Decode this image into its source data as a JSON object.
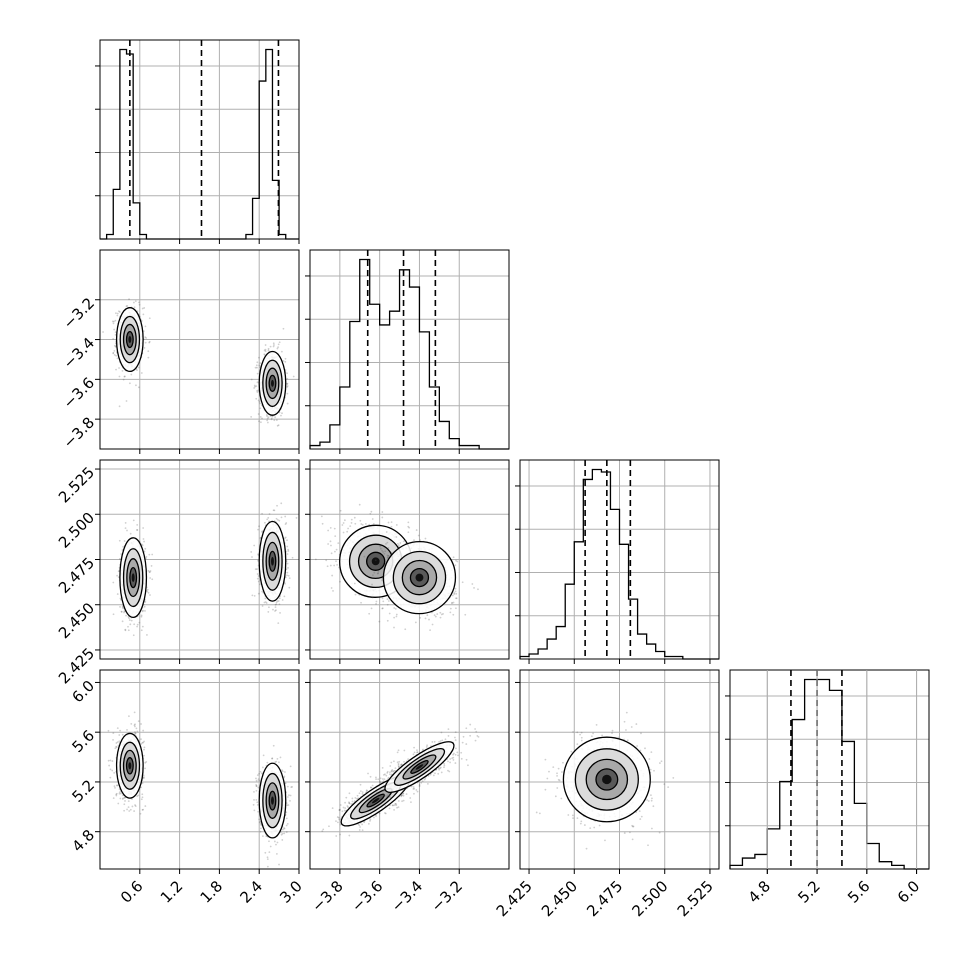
{
  "figure": {
    "type": "corner_plot",
    "n_params": 4,
    "grid": true,
    "colors": {
      "line": "#000000",
      "grid": "#b0b0b0",
      "points": "#555555"
    }
  },
  "chart_data": [
    {
      "type": "bar",
      "panel": "diag-0",
      "x_range": [
        0,
        3.0
      ],
      "x_ticks": [
        0.6,
        1.2,
        1.8,
        2.4,
        3.0
      ],
      "x_tick_labels": [
        "0.6",
        "1.2",
        "1.8",
        "2.4",
        "3.0"
      ],
      "bin_edges": [
        0.0,
        0.1,
        0.2,
        0.3,
        0.4,
        0.5,
        0.6,
        0.7,
        0.8,
        0.9,
        1.0,
        1.1,
        1.2,
        1.3,
        1.4,
        1.5,
        1.6,
        1.7,
        1.8,
        1.9,
        2.0,
        2.1,
        2.2,
        2.3,
        2.4,
        2.5,
        2.6,
        2.7,
        2.8,
        2.9,
        3.0
      ],
      "values": [
        0,
        1,
        11,
        42,
        41,
        8,
        1,
        0,
        0,
        0,
        0,
        0,
        0,
        0,
        0,
        0,
        0,
        0,
        0,
        0,
        0,
        0,
        1,
        9,
        35,
        42,
        13,
        1,
        0,
        0
      ],
      "quantile_lines": [
        0.45,
        1.53,
        2.69
      ]
    },
    {
      "type": "bar",
      "panel": "diag-1",
      "x_range": [
        -3.95,
        -2.95
      ],
      "x_ticks": [
        -3.8,
        -3.6,
        -3.4,
        -3.2
      ],
      "x_tick_labels": [
        "−3.8",
        "−3.6",
        "−3.4",
        "−3.2"
      ],
      "bin_edges": [
        -3.95,
        -3.9,
        -3.85,
        -3.8,
        -3.75,
        -3.7,
        -3.65,
        -3.6,
        -3.55,
        -3.5,
        -3.45,
        -3.4,
        -3.35,
        -3.3,
        -3.25,
        -3.2,
        -3.15,
        -3.1,
        -3.05,
        -3.0,
        -2.95
      ],
      "values": [
        1,
        2,
        7,
        18,
        37,
        55,
        42,
        36,
        40,
        52,
        47,
        34,
        18,
        8,
        3,
        1,
        1,
        0,
        0,
        0
      ],
      "quantile_lines": [
        -3.66,
        -3.48,
        -3.32
      ]
    },
    {
      "type": "bar",
      "panel": "diag-2",
      "x_range": [
        2.42,
        2.53
      ],
      "x_ticks": [
        2.425,
        2.45,
        2.475,
        2.5,
        2.525
      ],
      "x_tick_labels": [
        "2.425",
        "2.450",
        "2.475",
        "2.500",
        "2.525"
      ],
      "bin_edges": [
        2.42,
        2.425,
        2.43,
        2.435,
        2.44,
        2.445,
        2.45,
        2.455,
        2.46,
        2.465,
        2.47,
        2.475,
        2.48,
        2.485,
        2.49,
        2.495,
        2.5,
        2.505,
        2.51,
        2.515,
        2.52,
        2.525,
        2.53
      ],
      "values": [
        1,
        2,
        4,
        8,
        13,
        30,
        47,
        72,
        76,
        75,
        60,
        46,
        24,
        10,
        6,
        3,
        1,
        1,
        0,
        0,
        0,
        0
      ],
      "quantile_lines": [
        2.456,
        2.468,
        2.481
      ]
    },
    {
      "type": "bar",
      "panel": "diag-3",
      "x_range": [
        4.5,
        6.1
      ],
      "x_ticks": [
        4.8,
        5.2,
        5.6,
        6.0
      ],
      "x_tick_labels": [
        "4.8",
        "5.2",
        "5.6",
        "6.0"
      ],
      "bin_edges": [
        4.5,
        4.6,
        4.7,
        4.8,
        4.9,
        5.0,
        5.1,
        5.2,
        5.3,
        5.4,
        5.5,
        5.6,
        5.7,
        5.8,
        5.9,
        6.0,
        6.1
      ],
      "values": [
        1,
        3,
        4,
        11,
        24,
        41,
        52,
        52,
        49,
        35,
        18,
        7,
        2,
        1,
        0,
        0
      ],
      "quantile_lines": [
        4.99,
        5.2,
        5.4
      ]
    },
    {
      "type": "scatter",
      "panel": "row1-col0",
      "x_range": [
        0,
        3.0
      ],
      "y_range": [
        -3.95,
        -2.95
      ],
      "y_ticks": [
        -3.8,
        -3.6,
        -3.4,
        -3.2
      ],
      "y_tick_labels": [
        "−3.8",
        "−3.6",
        "−3.4",
        "−3.2"
      ],
      "clusters": [
        {
          "center": [
            0.45,
            -3.4
          ],
          "spread": [
            0.1,
            0.08
          ],
          "rho": 0
        },
        {
          "center": [
            2.6,
            -3.62
          ],
          "spread": [
            0.1,
            0.08
          ],
          "rho": 0
        }
      ]
    },
    {
      "type": "scatter",
      "panel": "row2-col0",
      "x_range": [
        0,
        3.0
      ],
      "y_range": [
        2.42,
        2.53
      ],
      "y_ticks": [
        2.425,
        2.45,
        2.475,
        2.5,
        2.525
      ],
      "y_tick_labels": [
        "2.425",
        "2.450",
        "2.475",
        "2.500",
        "2.525"
      ],
      "clusters": [
        {
          "center": [
            0.5,
            2.465
          ],
          "spread": [
            0.1,
            0.011
          ],
          "rho": 0
        },
        {
          "center": [
            2.6,
            2.474
          ],
          "spread": [
            0.1,
            0.011
          ],
          "rho": 0
        }
      ]
    },
    {
      "type": "scatter",
      "panel": "row2-col1",
      "x_range": [
        -3.95,
        -2.95
      ],
      "y_range": [
        2.42,
        2.53
      ],
      "clusters": [
        {
          "center": [
            -3.62,
            2.474
          ],
          "spread": [
            0.09,
            0.01
          ],
          "rho": -0.3
        },
        {
          "center": [
            -3.4,
            2.465
          ],
          "spread": [
            0.09,
            0.01
          ],
          "rho": -0.3
        }
      ]
    },
    {
      "type": "scatter",
      "panel": "row3-col0",
      "x_range": [
        0,
        3.0
      ],
      "y_range": [
        4.5,
        6.1
      ],
      "y_ticks": [
        4.8,
        5.2,
        5.6,
        6.0
      ],
      "y_tick_labels": [
        "4.8",
        "5.2",
        "5.6",
        "6.0"
      ],
      "clusters": [
        {
          "center": [
            0.45,
            5.33
          ],
          "spread": [
            0.1,
            0.13
          ],
          "rho": 0
        },
        {
          "center": [
            2.6,
            5.05
          ],
          "spread": [
            0.1,
            0.15
          ],
          "rho": 0
        }
      ]
    },
    {
      "type": "scatter",
      "panel": "row3-col1",
      "x_range": [
        -3.95,
        -2.95
      ],
      "y_range": [
        4.5,
        6.1
      ],
      "clusters": [
        {
          "center": [
            -3.62,
            5.05
          ],
          "spread": [
            0.09,
            0.1
          ],
          "rho": 0.75
        },
        {
          "center": [
            -3.4,
            5.32
          ],
          "spread": [
            0.09,
            0.1
          ],
          "rho": 0.75
        }
      ]
    },
    {
      "type": "scatter",
      "panel": "row3-col2",
      "x_range": [
        2.42,
        2.53
      ],
      "y_range": [
        4.5,
        6.1
      ],
      "clusters": [
        {
          "center": [
            2.468,
            5.22
          ],
          "spread": [
            0.012,
            0.17
          ],
          "rho": 0
        }
      ]
    }
  ]
}
